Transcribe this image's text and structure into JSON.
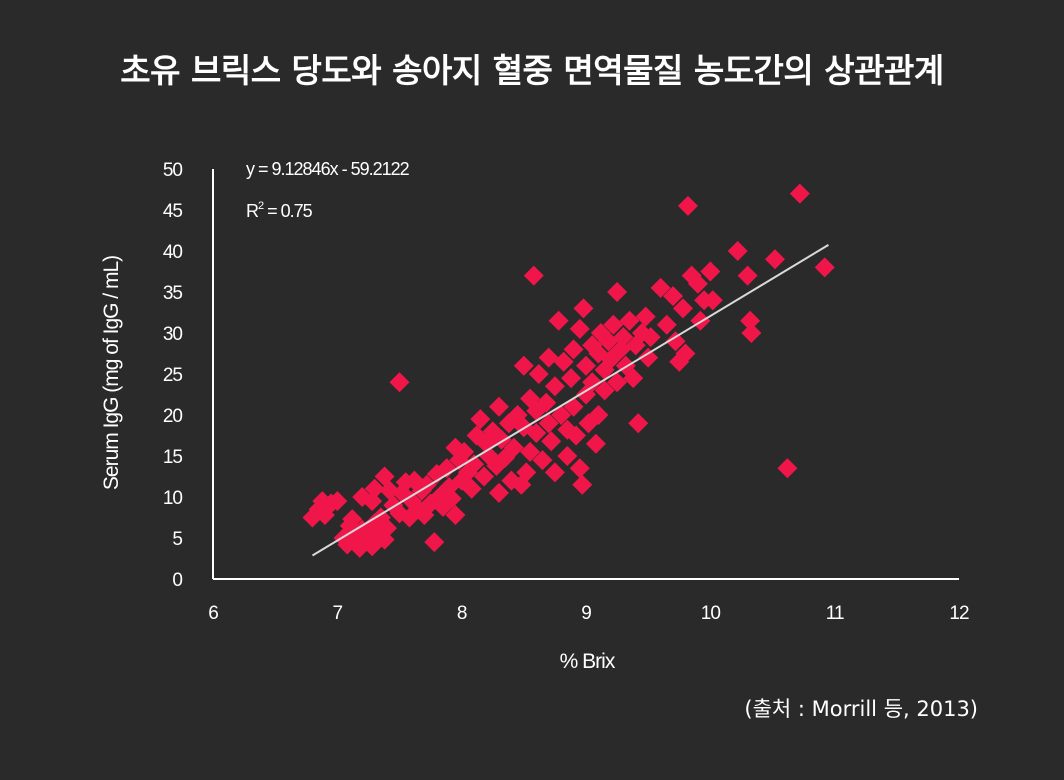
{
  "title": "초유 브릭스 당도와 송아지 혈중 면역물질 농도간의 상관관계",
  "source": "(출처 : Morrill 등, 2013)",
  "colors": {
    "background": "#2a2a2a",
    "points": "#f0164a",
    "trendline": "#d9d9d9",
    "text": "#ffffff"
  },
  "chart_data": {
    "type": "scatter",
    "xlabel": "% Brix",
    "ylabel": "Serum IgG (mg of IgG / mL)",
    "xlim": [
      6,
      12
    ],
    "ylim": [
      0,
      50
    ],
    "xticks": [
      "6",
      "7",
      "8",
      "9",
      "10",
      "11",
      "12"
    ],
    "yticks": [
      "0",
      "5",
      "10",
      "15",
      "20",
      "25",
      "30",
      "35",
      "40",
      "45",
      "50"
    ],
    "grid": false,
    "equation": "y = 9.12846x - 59.2122",
    "r2_base": "R",
    "r2_sup": "2",
    "r2_rest": " = 0.75",
    "trendline": {
      "slope": 9.12846,
      "intercept": -59.2122,
      "x_range": [
        6.8,
        10.95
      ]
    },
    "points": [
      [
        6.8,
        7.5
      ],
      [
        6.85,
        8.5
      ],
      [
        6.88,
        9.5
      ],
      [
        6.9,
        7.8
      ],
      [
        6.95,
        9.2
      ],
      [
        7.0,
        9.5
      ],
      [
        7.05,
        5.0
      ],
      [
        7.08,
        4.2
      ],
      [
        7.1,
        6.5
      ],
      [
        7.12,
        7.3
      ],
      [
        7.15,
        5.5
      ],
      [
        7.18,
        3.8
      ],
      [
        7.2,
        6.0
      ],
      [
        7.22,
        4.5
      ],
      [
        7.25,
        5.2
      ],
      [
        7.28,
        4.0
      ],
      [
        7.3,
        6.8
      ],
      [
        7.32,
        5.8
      ],
      [
        7.35,
        7.5
      ],
      [
        7.38,
        4.8
      ],
      [
        7.4,
        6.2
      ],
      [
        7.2,
        10.0
      ],
      [
        7.28,
        9.5
      ],
      [
        7.3,
        11.0
      ],
      [
        7.38,
        12.5
      ],
      [
        7.42,
        10.8
      ],
      [
        7.45,
        9.0
      ],
      [
        7.5,
        24.0
      ],
      [
        7.5,
        8.0
      ],
      [
        7.52,
        10.5
      ],
      [
        7.55,
        11.8
      ],
      [
        7.58,
        7.5
      ],
      [
        7.6,
        9.5
      ],
      [
        7.62,
        12.0
      ],
      [
        7.65,
        8.5
      ],
      [
        7.68,
        10.8
      ],
      [
        7.7,
        7.8
      ],
      [
        7.72,
        11.5
      ],
      [
        7.75,
        9.2
      ],
      [
        7.78,
        4.5
      ],
      [
        7.8,
        12.8
      ],
      [
        7.82,
        10.0
      ],
      [
        7.85,
        8.8
      ],
      [
        7.88,
        13.5
      ],
      [
        7.9,
        11.2
      ],
      [
        7.92,
        9.8
      ],
      [
        7.95,
        16.0
      ],
      [
        7.95,
        7.8
      ],
      [
        7.98,
        14.5
      ],
      [
        8.0,
        12.0
      ],
      [
        8.02,
        15.5
      ],
      [
        8.05,
        13.0
      ],
      [
        8.08,
        11.0
      ],
      [
        8.1,
        14.0
      ],
      [
        8.12,
        17.5
      ],
      [
        8.15,
        19.5
      ],
      [
        8.18,
        12.5
      ],
      [
        8.2,
        16.5
      ],
      [
        8.22,
        15.0
      ],
      [
        8.25,
        18.0
      ],
      [
        8.28,
        13.8
      ],
      [
        8.3,
        10.5
      ],
      [
        8.3,
        21.0
      ],
      [
        8.32,
        17.0
      ],
      [
        8.35,
        14.8
      ],
      [
        8.38,
        19.0
      ],
      [
        8.4,
        12.0
      ],
      [
        8.42,
        16.0
      ],
      [
        8.45,
        20.0
      ],
      [
        8.48,
        11.5
      ],
      [
        8.5,
        18.5
      ],
      [
        8.5,
        26.0
      ],
      [
        8.52,
        13.0
      ],
      [
        8.55,
        22.0
      ],
      [
        8.55,
        15.5
      ],
      [
        8.58,
        37.0
      ],
      [
        8.6,
        20.5
      ],
      [
        8.6,
        17.8
      ],
      [
        8.62,
        25.0
      ],
      [
        8.65,
        14.5
      ],
      [
        8.68,
        21.5
      ],
      [
        8.7,
        19.0
      ],
      [
        8.7,
        27.0
      ],
      [
        8.72,
        16.8
      ],
      [
        8.75,
        23.5
      ],
      [
        8.75,
        13.0
      ],
      [
        8.78,
        31.5
      ],
      [
        8.8,
        20.0
      ],
      [
        8.82,
        26.5
      ],
      [
        8.85,
        18.2
      ],
      [
        8.85,
        15.0
      ],
      [
        8.88,
        24.5
      ],
      [
        8.9,
        28.0
      ],
      [
        8.9,
        21.0
      ],
      [
        8.92,
        17.5
      ],
      [
        8.95,
        30.5
      ],
      [
        8.95,
        13.5
      ],
      [
        8.97,
        11.5
      ],
      [
        8.98,
        33.0
      ],
      [
        9.0,
        26.0
      ],
      [
        9.0,
        22.5
      ],
      [
        9.02,
        19.0
      ],
      [
        9.05,
        28.5
      ],
      [
        9.05,
        24.0
      ],
      [
        9.08,
        16.5
      ],
      [
        9.1,
        27.5
      ],
      [
        9.1,
        20.0
      ],
      [
        9.12,
        30.0
      ],
      [
        9.15,
        25.5
      ],
      [
        9.15,
        23.0
      ],
      [
        9.18,
        29.0
      ],
      [
        9.2,
        26.8
      ],
      [
        9.22,
        31.0
      ],
      [
        9.25,
        24.0
      ],
      [
        9.25,
        35.0
      ],
      [
        9.28,
        28.0
      ],
      [
        9.3,
        29.5
      ],
      [
        9.32,
        26.0
      ],
      [
        9.35,
        31.5
      ],
      [
        9.38,
        24.5
      ],
      [
        9.4,
        28.5
      ],
      [
        9.42,
        19.0
      ],
      [
        9.45,
        30.0
      ],
      [
        9.48,
        32.0
      ],
      [
        9.5,
        27.0
      ],
      [
        9.52,
        29.5
      ],
      [
        9.6,
        35.5
      ],
      [
        9.65,
        31.0
      ],
      [
        9.7,
        34.5
      ],
      [
        9.72,
        29.0
      ],
      [
        9.75,
        26.5
      ],
      [
        9.78,
        33.0
      ],
      [
        9.8,
        27.5
      ],
      [
        9.82,
        45.5
      ],
      [
        9.85,
        37.0
      ],
      [
        9.9,
        36.0
      ],
      [
        9.92,
        31.5
      ],
      [
        9.95,
        34.0
      ],
      [
        10.0,
        37.5
      ],
      [
        10.02,
        34.0
      ],
      [
        10.22,
        40.0
      ],
      [
        10.3,
        37.0
      ],
      [
        10.32,
        31.5
      ],
      [
        10.33,
        30.0
      ],
      [
        10.52,
        39.0
      ],
      [
        10.62,
        13.5
      ],
      [
        10.72,
        47.0
      ],
      [
        10.92,
        38.0
      ]
    ]
  }
}
